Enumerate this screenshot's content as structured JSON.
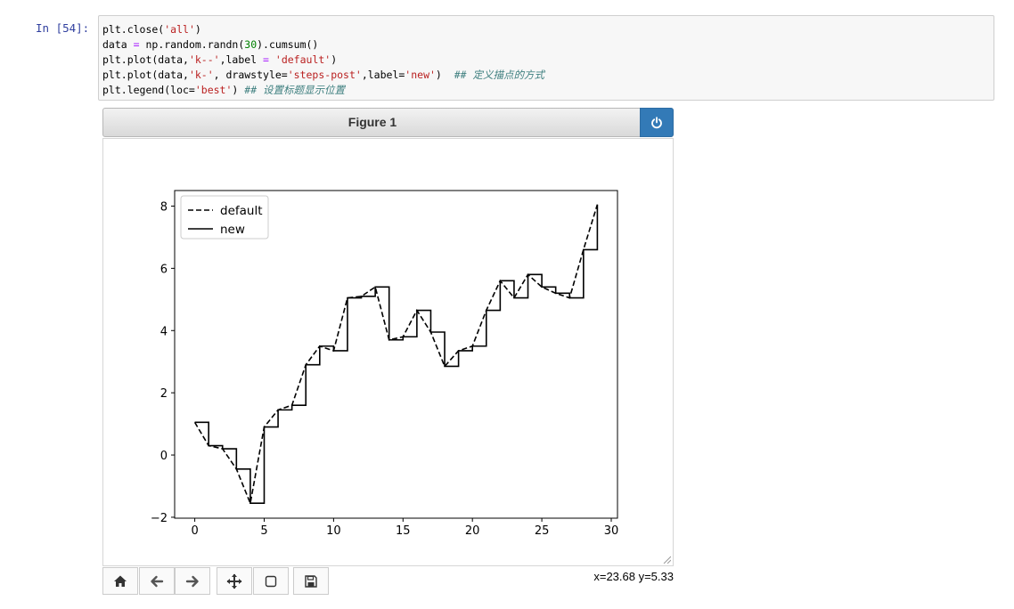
{
  "cell": {
    "prompt": "In  [54]:",
    "code_lines": [
      [
        {
          "t": "plt.close("
        },
        {
          "t": "'all'",
          "c": "s"
        },
        {
          "t": ")"
        }
      ],
      [
        {
          "t": "data "
        },
        {
          "t": "=",
          "c": "o"
        },
        {
          "t": " np.random.randn("
        },
        {
          "t": "30",
          "c": "n"
        },
        {
          "t": ").cumsum()"
        }
      ],
      [
        {
          "t": "plt.plot(data,"
        },
        {
          "t": "'k--'",
          "c": "s"
        },
        {
          "t": ",label "
        },
        {
          "t": "=",
          "c": "o"
        },
        {
          "t": " "
        },
        {
          "t": "'default'",
          "c": "s"
        },
        {
          "t": ")"
        }
      ],
      [
        {
          "t": "plt.plot(data,"
        },
        {
          "t": "'k-'",
          "c": "s"
        },
        {
          "t": ", drawstyle="
        },
        {
          "t": "'steps-post'",
          "c": "s"
        },
        {
          "t": ",label="
        },
        {
          "t": "'new'",
          "c": "s"
        },
        {
          "t": ")  "
        },
        {
          "t": "## 定义描点的方式",
          "c": "c"
        }
      ],
      [
        {
          "t": "plt.legend(loc="
        },
        {
          "t": "'best'",
          "c": "s"
        },
        {
          "t": ") "
        },
        {
          "t": "## 设置标题显示位置",
          "c": "c"
        }
      ]
    ]
  },
  "figure": {
    "title": "Figure 1",
    "power_icon": "power-icon",
    "status": "x=23.68 y=5.33",
    "toolbar": [
      {
        "name": "home-button",
        "icon": "home-icon"
      },
      {
        "name": "back-button",
        "icon": "arrow-left-icon"
      },
      {
        "name": "forward-button",
        "icon": "arrow-right-icon"
      },
      {
        "name": "pan-button",
        "icon": "move-icon"
      },
      {
        "name": "zoom-button",
        "icon": "zoom-rect-icon"
      },
      {
        "name": "save-button",
        "icon": "save-icon"
      }
    ],
    "accent_color": "#337ab7"
  },
  "chart_data": {
    "type": "line",
    "x": [
      0,
      1,
      2,
      3,
      4,
      5,
      6,
      7,
      8,
      9,
      10,
      11,
      12,
      13,
      14,
      15,
      16,
      17,
      18,
      19,
      20,
      21,
      22,
      23,
      24,
      25,
      26,
      27,
      28,
      29
    ],
    "series": [
      {
        "name": "default",
        "style": "dashed",
        "values": [
          1.05,
          0.3,
          0.2,
          -0.45,
          -1.55,
          0.9,
          1.45,
          1.6,
          2.9,
          3.5,
          3.35,
          5.05,
          5.1,
          5.4,
          3.7,
          3.8,
          4.65,
          3.95,
          2.85,
          3.35,
          3.5,
          4.65,
          5.6,
          5.05,
          5.8,
          5.4,
          5.2,
          5.05,
          6.6,
          8.05
        ]
      },
      {
        "name": "new",
        "style": "steps-post",
        "values": [
          1.05,
          0.3,
          0.2,
          -0.45,
          -1.55,
          0.9,
          1.45,
          1.6,
          2.9,
          3.5,
          3.35,
          5.05,
          5.1,
          5.4,
          3.7,
          3.8,
          4.65,
          3.95,
          2.85,
          3.35,
          3.5,
          4.65,
          5.6,
          5.05,
          5.8,
          5.4,
          5.2,
          5.05,
          6.6,
          8.05
        ]
      }
    ],
    "xlim": [
      -1.45,
      30.45
    ],
    "ylim": [
      -2.03,
      8.5
    ],
    "xticks": [
      0,
      5,
      10,
      15,
      20,
      25,
      30
    ],
    "yticks": [
      -2,
      0,
      2,
      4,
      6,
      8
    ],
    "legend_loc": "upper-left",
    "grid": false,
    "color": "#000000"
  }
}
